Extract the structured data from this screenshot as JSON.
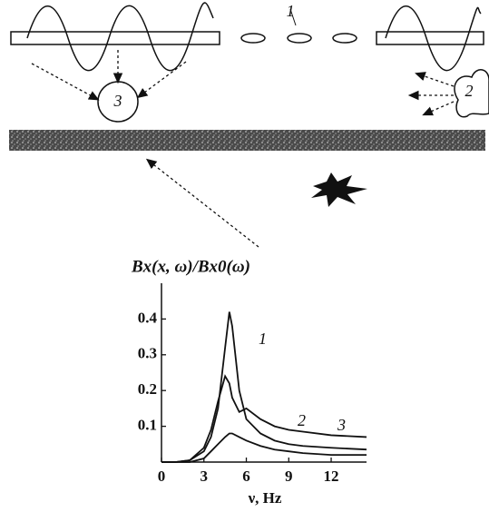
{
  "diagram": {
    "labels": [
      "1",
      "2",
      "3"
    ]
  },
  "chart_data": {
    "type": "line",
    "y_label": "Bx(x, ω)/Bx0(ω)",
    "x_label": "ν, Hz",
    "x": [
      0,
      1,
      2,
      3,
      3.5,
      4,
      4.5,
      4.8,
      5,
      5.5,
      6,
      7,
      8,
      9,
      10,
      12,
      14.5
    ],
    "series": [
      {
        "name": "1",
        "color": "#111111",
        "values": [
          0,
          0,
          0.005,
          0.03,
          0.07,
          0.15,
          0.32,
          0.42,
          0.38,
          0.2,
          0.12,
          0.08,
          0.06,
          0.05,
          0.045,
          0.04,
          0.035
        ]
      },
      {
        "name": "2",
        "color": "#111111",
        "values": [
          0,
          0,
          0.005,
          0.04,
          0.09,
          0.17,
          0.24,
          0.22,
          0.18,
          0.14,
          0.15,
          0.12,
          0.1,
          0.09,
          0.085,
          0.075,
          0.07
        ]
      },
      {
        "name": "3",
        "color": "#111111",
        "values": [
          0,
          0,
          0,
          0.01,
          0.03,
          0.05,
          0.07,
          0.08,
          0.08,
          0.07,
          0.06,
          0.045,
          0.035,
          0.03,
          0.025,
          0.02,
          0.02
        ]
      }
    ],
    "xlim": [
      0,
      14.5
    ],
    "ylim": [
      0,
      0.5
    ],
    "xticks": [
      0,
      3,
      6,
      9,
      12
    ],
    "yticks": [
      0.1,
      0.2,
      0.3,
      0.4
    ]
  }
}
